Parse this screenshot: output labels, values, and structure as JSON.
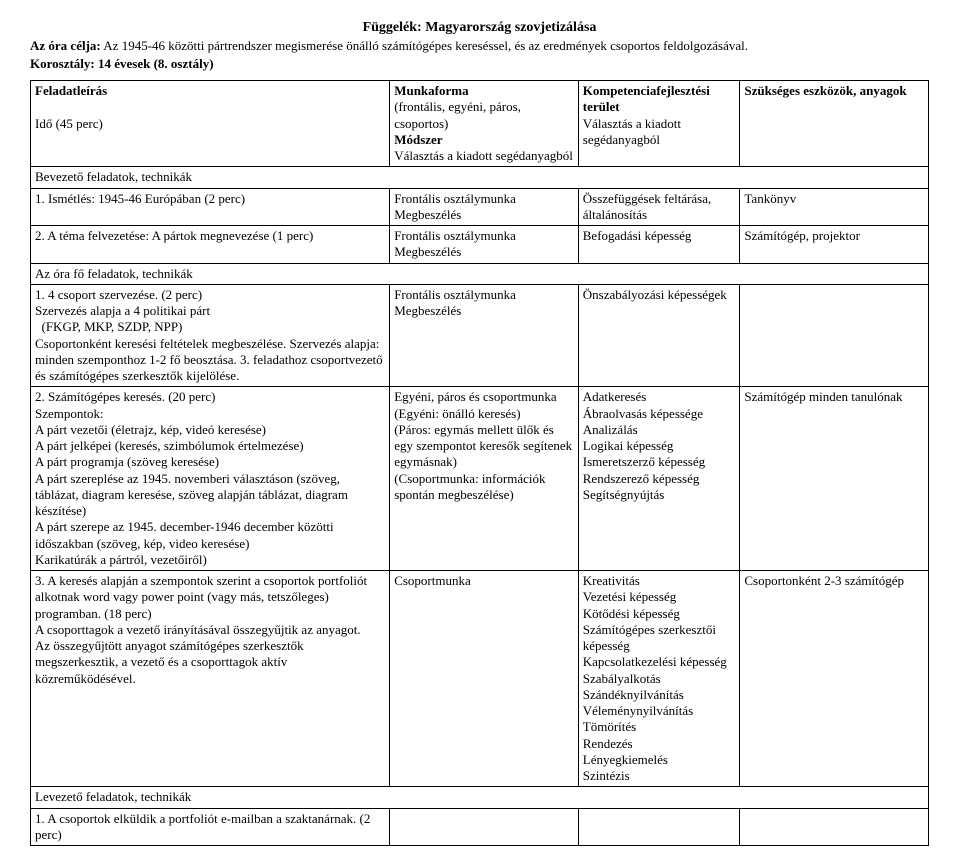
{
  "title": "Függelék: Magyarország szovjetizálása",
  "intro_label1": "Az óra célja:",
  "intro_text1": " Az 1945-46 közötti pártrendszer megismerése önálló számítógépes kereséssel, és az eredmények csoportos feldolgozásával.",
  "intro_label2": "Korosztály: 14 évesek (8. osztály)",
  "headers": {
    "c1a": "Feladatleírás",
    "c1b": "Idő (45 perc)",
    "c2a": "Munkaforma",
    "c2b": "(frontális, egyéni, páros, csoportos)",
    "c2c": "Módszer",
    "c2d": "Választás a kiadott segédanyagból",
    "c3a": "Kompetenciafejlesztési terület",
    "c3b": "Választás a kiadott segédanyagból",
    "c4": "Szükséges eszközök, anyagok"
  },
  "sec1": "Bevezető feladatok, technikák",
  "r1": {
    "c1": "1. Ismétlés: 1945-46 Európában (2 perc)",
    "c2": "Frontális osztálymunka<br>Megbeszélés",
    "c3": "Összefüggések feltárása, általánosítás",
    "c4": "Tankönyv"
  },
  "r2": {
    "c1": "2. A téma felvezetése: A pártok megnevezése (1 perc)",
    "c2": "Frontális osztálymunka<br>Megbeszélés",
    "c3": "Befogadási képesség",
    "c4": "Számítógép, projektor"
  },
  "sec2": "Az óra fő feladatok, technikák",
  "r3": {
    "c1": "1. 4 csoport szervezése. (2 perc)<br>Szervezés alapja a 4 politikai párt<br>&nbsp;&nbsp;(FKGP, MKP, SZDP, NPP)<br>Csoportonként keresési feltételek megbeszélése. Szervezés alapja: minden szemponthoz 1-2 fő beosztása. 3. feladathoz csoportvezető és számítógépes szerkesztők kijelölése.",
    "c2": "Frontális osztálymunka<br>Megbeszélés",
    "c3": "Önszabályozási képességek",
    "c4": ""
  },
  "r4": {
    "c1": "2. Számítógépes keresés. (20 perc)<br>Szempontok:<br>A párt vezetői (életrajz, kép, videó keresése)<br>A párt jelképei (keresés, szimbólumok értelmezése)<br>A párt programja (szöveg keresése)<br>A párt szereplése az 1945. novemberi választáson (szöveg, táblázat, diagram keresése, szöveg alapján táblázat, diagram készítése)<br>A párt szerepe az 1945. december-1946 december közötti időszakban (szöveg, kép, video keresése)<br>Karikatúrák a pártról, vezetőiről)",
    "c2": "Egyéni, páros és csoportmunka<br>(Egyéni: önálló keresés)<br>(Páros: egymás mellett ülők és egy szempontot keresők segítenek egymásnak)<br>(Csoportmunka: információk spontán megbeszélése)",
    "c3": "Adatkeresés<br>Ábraolvasás képessége<br>Analizálás<br>Logikai képesség<br>Ismeretszerző képesség<br>Rendszerező képesség<br>Segítségnyújtás",
    "c4": "Számítógép minden tanulónak"
  },
  "r5": {
    "c1": "3. A keresés alapján a szempontok szerint a csoportok portfoliót alkotnak word vagy power point (vagy más, tetszőleges) programban. (18 perc)<br>A csoporttagok a vezető irányításával összegyűjtik az anyagot.<br>Az összegyűjtött anyagot számítógépes szerkesztők megszerkesztik, a vezető és a csoporttagok aktív közreműködésével.",
    "c2": "Csoportmunka",
    "c3": "Kreativitás<br>Vezetési képesség<br>Kötődési képesség<br>Számítógépes szerkesztői képesség<br>Kapcsolatkezelési képesség<br>Szabályalkotás<br>Szándéknyilvánítás<br>Véleménynyilvánítás<br>Tömörítés<br>Rendezés<br>Lényegkiemelés<br>Szintézis",
    "c4": "Csoportonként 2-3 számítógép"
  },
  "sec3": "Levezető feladatok, technikák",
  "r6": {
    "c1": "1. A csoportok elküldik a portfoliót e-mailban a szaktanárnak. (2 perc)",
    "c2": "",
    "c3": "",
    "c4": ""
  }
}
